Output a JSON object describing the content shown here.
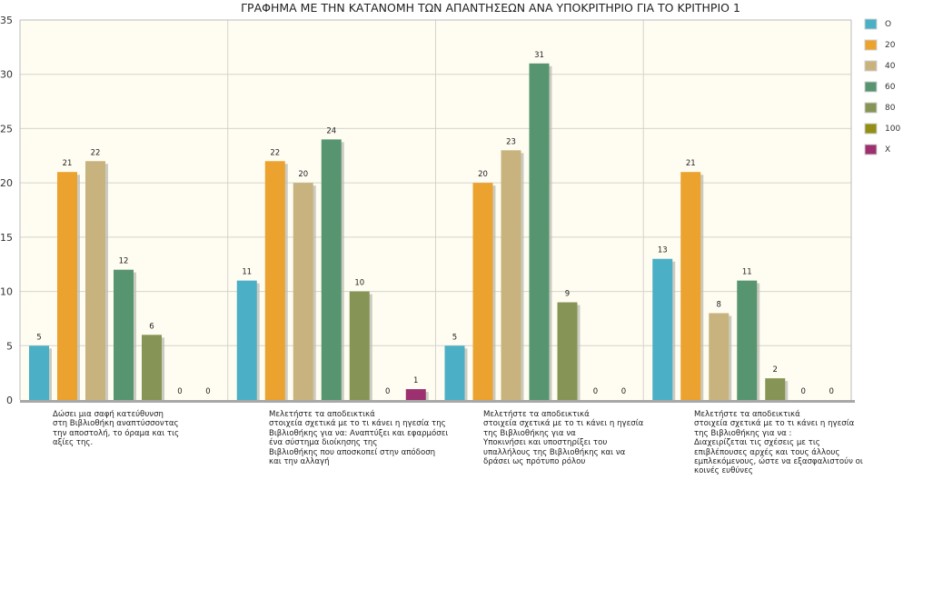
{
  "chart_data": {
    "type": "bar",
    "title": "ΓΡΑΦΗΜΑ ΜΕ ΤΗΝ ΚΑΤΑΝΟΜΗ ΤΩΝ ΑΠΑΝΤΗΣΕΩΝ ΑΝΑ ΥΠΟΚΡΙΤΗΡΙΟ ΓΙΑ ΤΟ ΚΡΙΤΗΡΙΟ 1",
    "xlabel": "",
    "ylabel": "",
    "ylim": [
      0,
      35
    ],
    "yticks": [
      0,
      5,
      10,
      15,
      20,
      25,
      30,
      35
    ],
    "grid": true,
    "legend_position": "right",
    "categories": [
      "   Δώσει μια σαφή κατεύθυνση\nστη Βιβλιοθήκη αναπτύσσοντας\nτην αποστολή, το όραμα και τις\nαξίες της.",
      "   Μελετήστε τα αποδεικτικά\nστοιχεία σχετικά με το τι κάνει η ηγεσία της\nΒιβλιοθήκης για να: Αναπτύξει και εφαρμόσει\nένα σύστημα διοίκησης της\nΒιβλιοθήκης που αποσκοπεί στην απόδοση\nκαι την αλλαγή",
      "   Μελετήστε τα αποδεικτικά\nστοιχεία σχετικά με το τι κάνει η ηγεσία\nτης Βιβλιοθήκης για να\nΥποκινήσει και υποστηρίξει του\nυπαλλήλους της Βιβλιοθήκης και να\nδράσει ως πρότυπο ρόλου",
      "   Μελετήστε τα αποδεικτικά\nστοιχεία σχετικά με το τι κάνει η ηγεσία\nτης Βιβλιοθήκης για να :\nΔιαχειρίζεται τις σχέσεις με τις\nεπιβλέπουσες αρχές και τους άλλους\nεμπλεκόμενους, ώστε να εξασφαλιστούν οι\nκοινές ευθύνες"
    ],
    "series": [
      {
        "name": "O",
        "color": "#4bafc6",
        "values": [
          5,
          11,
          5,
          13
        ]
      },
      {
        "name": "20",
        "color": "#eba22f",
        "values": [
          21,
          22,
          20,
          21
        ]
      },
      {
        "name": "40",
        "color": "#c8b37e",
        "values": [
          22,
          20,
          23,
          8
        ]
      },
      {
        "name": "60",
        "color": "#56956f",
        "values": [
          12,
          24,
          31,
          11
        ]
      },
      {
        "name": "80",
        "color": "#869556",
        "values": [
          6,
          10,
          9,
          2
        ]
      },
      {
        "name": "100",
        "color": "#938e15",
        "values": [
          0,
          0,
          0,
          0
        ]
      },
      {
        "name": "X",
        "color": "#9d306e",
        "values": [
          0,
          1,
          0,
          0
        ]
      }
    ]
  }
}
